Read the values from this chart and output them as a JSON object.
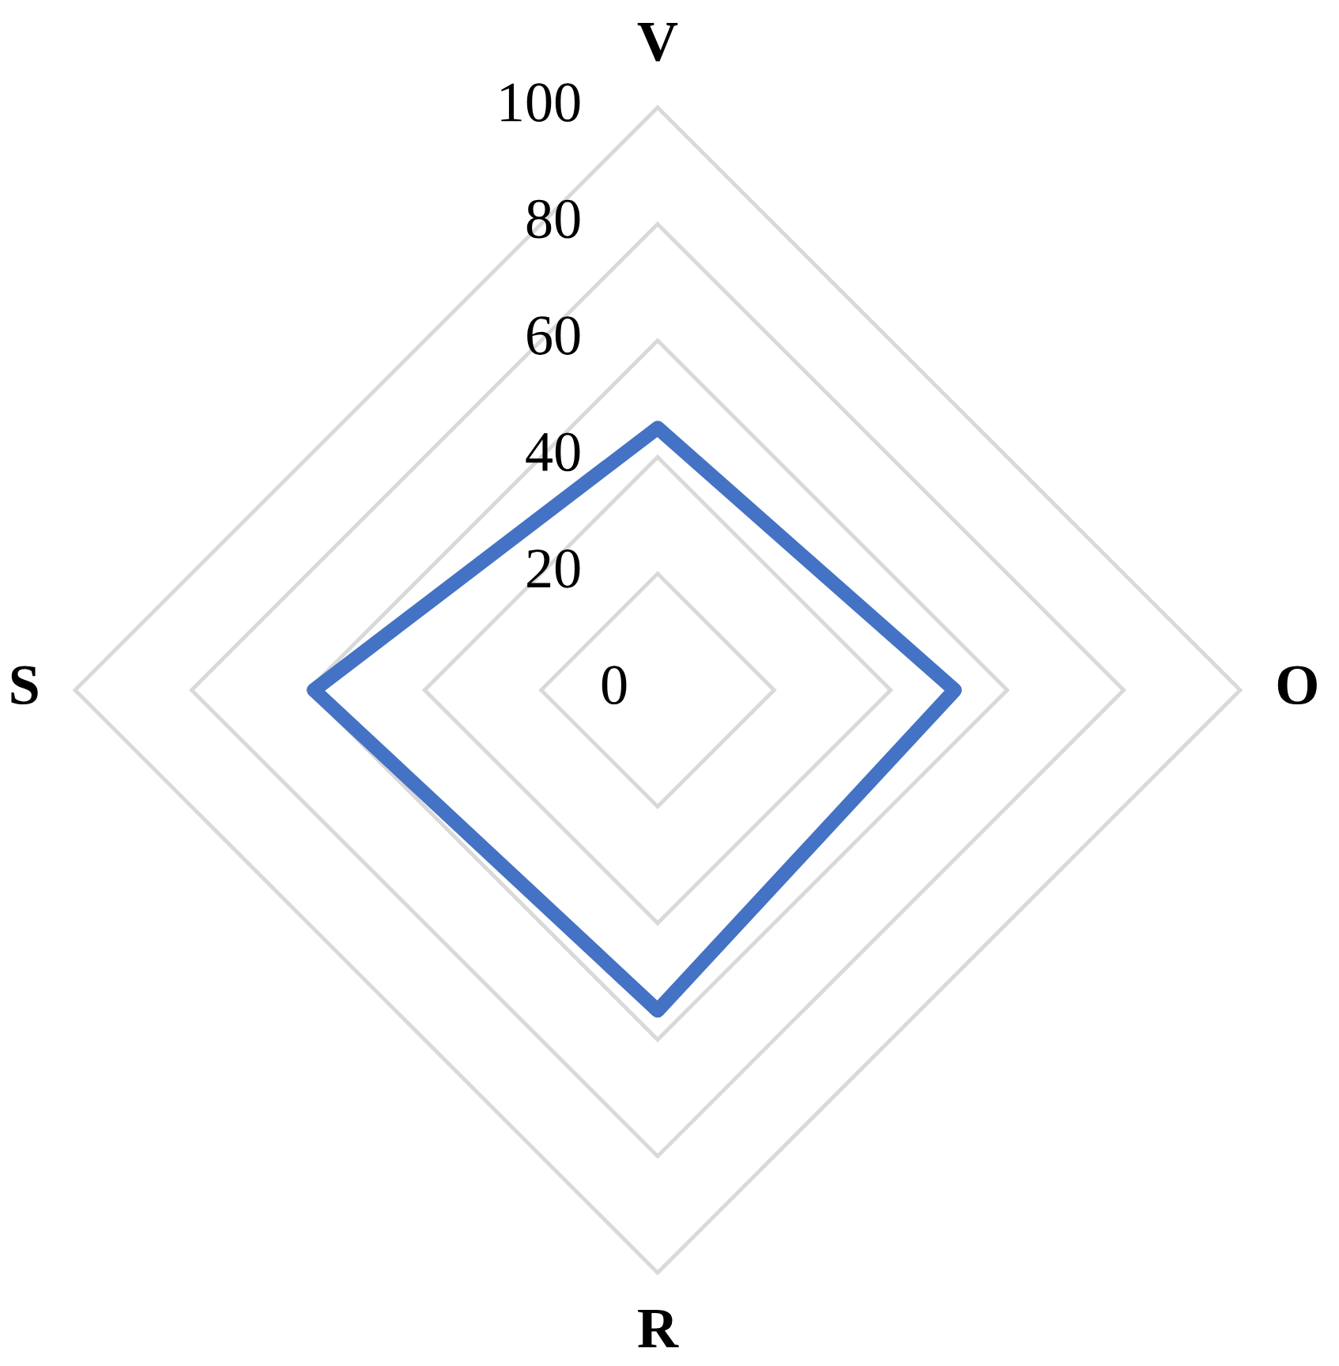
{
  "chart_data": {
    "type": "radar",
    "categories": [
      "V",
      "O",
      "R",
      "S"
    ],
    "series": [
      {
        "color": "#4472c4",
        "values": [
          45,
          51,
          55,
          59
        ]
      }
    ],
    "ylim": [
      0,
      100
    ],
    "yticks": [
      {
        "value": 0,
        "label": "0"
      },
      20,
      40,
      60,
      80,
      100
    ],
    "grid": true,
    "line_style": "solid"
  }
}
